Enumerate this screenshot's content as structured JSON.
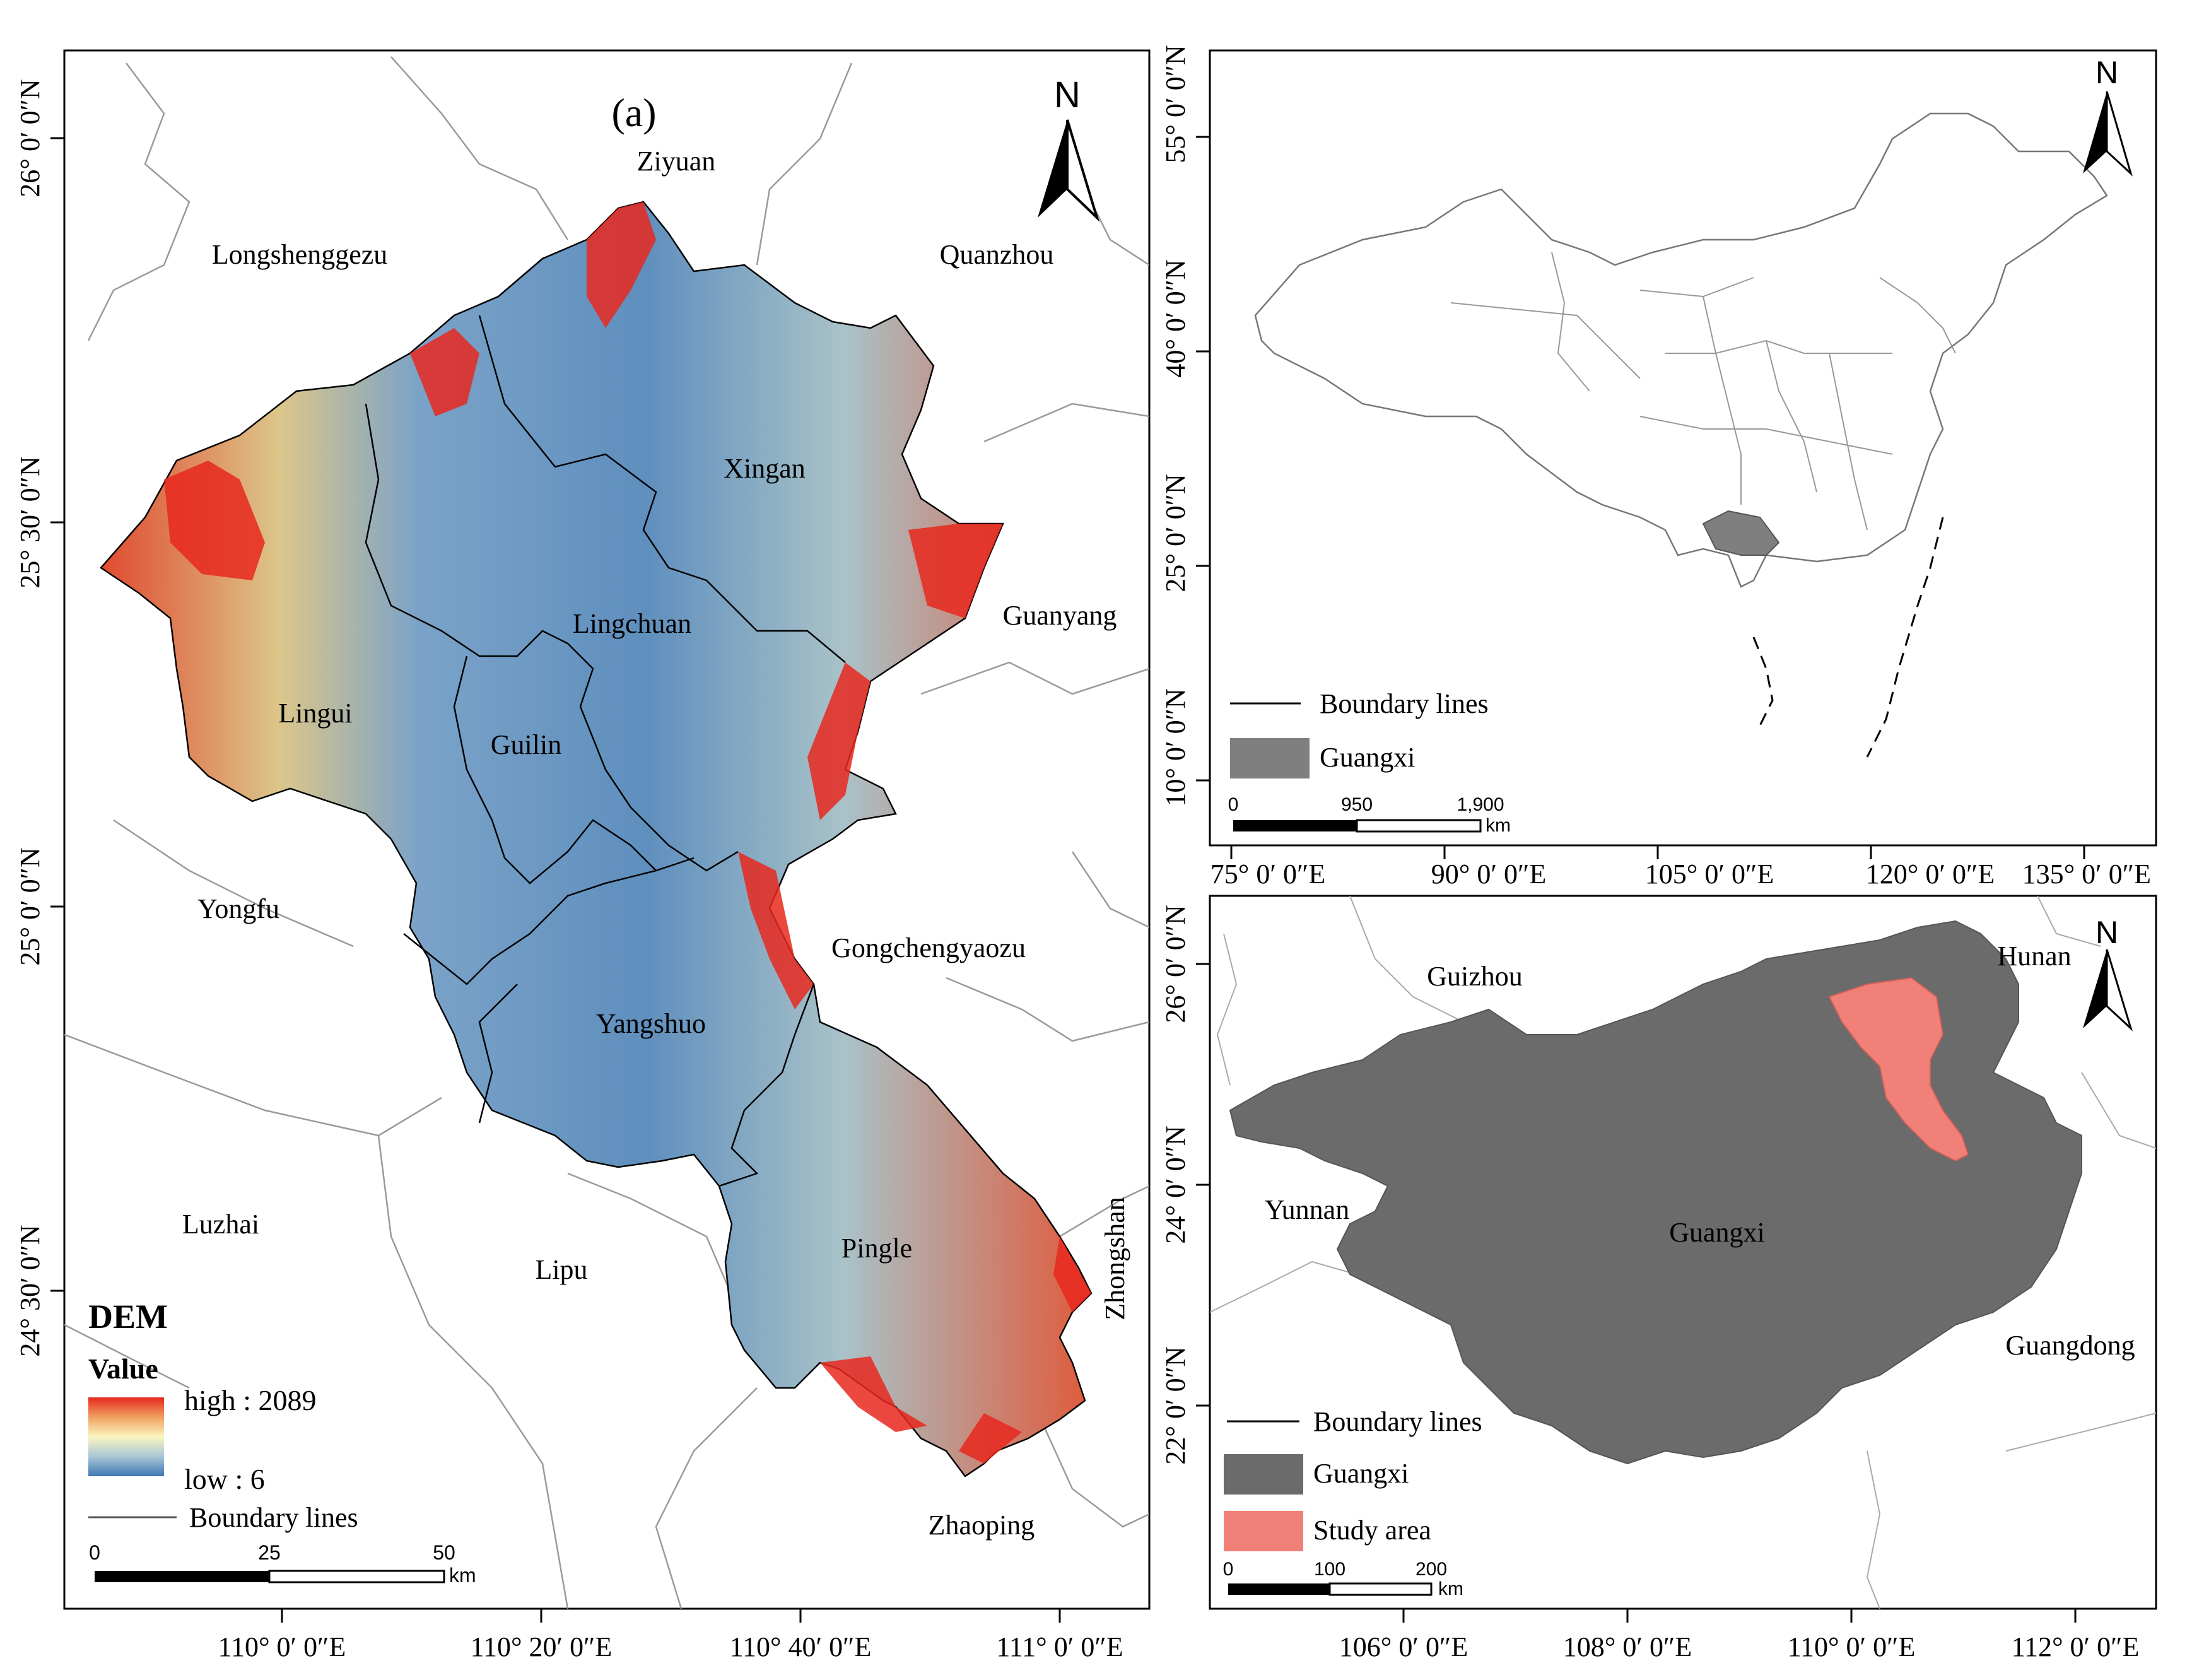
{
  "panel_a": {
    "label": "(a)",
    "north": "N",
    "places": [
      "Ziyuan",
      "Longshenggezu",
      "Quanzhou",
      "Xingan",
      "Guanyang",
      "Lingchuan",
      "Lingui",
      "Guilin",
      "Yongfu",
      "Gongchengyaozu",
      "Yangshuo",
      "Luzhai",
      "Lipu",
      "Pingle",
      "Zhongshan",
      "Zhaoping"
    ],
    "lat_ticks": [
      "26° 0′ 0″N",
      "25° 30′ 0″N",
      "25° 0′ 0″N",
      "24° 30′ 0″N"
    ],
    "lon_ticks": [
      "110° 0′ 0″E",
      "110° 20′ 0″E",
      "110° 40′ 0″E",
      "111° 0′ 0″E"
    ],
    "legend": {
      "title": "DEM",
      "subtitle": "Value",
      "high": "high : 2089",
      "low": "low  : 6",
      "boundary": "Boundary lines",
      "ramp_colors": [
        "#e8281e",
        "#f0a060",
        "#fbf6c0",
        "#a8c6d6",
        "#3f78b4"
      ]
    },
    "scale": {
      "ticks": [
        "0",
        "25",
        "50"
      ],
      "unit": "km"
    }
  },
  "panel_b": {
    "north": "N",
    "lat_ticks": [
      "55° 0′ 0″N",
      "40° 0′ 0″N",
      "25° 0′ 0″N",
      "10° 0′ 0″N"
    ],
    "lon_ticks": [
      "75° 0′ 0″E",
      "90° 0′ 0″E",
      "105° 0′ 0″E",
      "120° 0′ 0″E",
      "135° 0′ 0″E"
    ],
    "legend": {
      "boundary": "Boundary lines",
      "guangxi": "Guangxi",
      "guangxi_color": "#7f7f7f"
    },
    "scale": {
      "ticks": [
        "0",
        "950",
        "1,900"
      ],
      "unit": "km"
    }
  },
  "panel_c": {
    "north": "N",
    "places": [
      "Guizhou",
      "Hunan",
      "Yunnan",
      "Guangxi",
      "Guangdong"
    ],
    "lat_ticks": [
      "26° 0′ 0″N",
      "24° 0′ 0″N",
      "22° 0′ 0″N"
    ],
    "lon_ticks": [
      "106° 0′ 0″E",
      "108° 0′ 0″E",
      "110° 0′ 0″E",
      "112° 0′ 0″E"
    ],
    "legend": {
      "boundary": "Boundary lines",
      "guangxi": "Guangxi",
      "study": "Study area",
      "guangxi_color": "#6b6b6b",
      "study_color": "#f08078"
    },
    "scale": {
      "ticks": [
        "0",
        "100",
        "200"
      ],
      "unit": "km"
    }
  }
}
